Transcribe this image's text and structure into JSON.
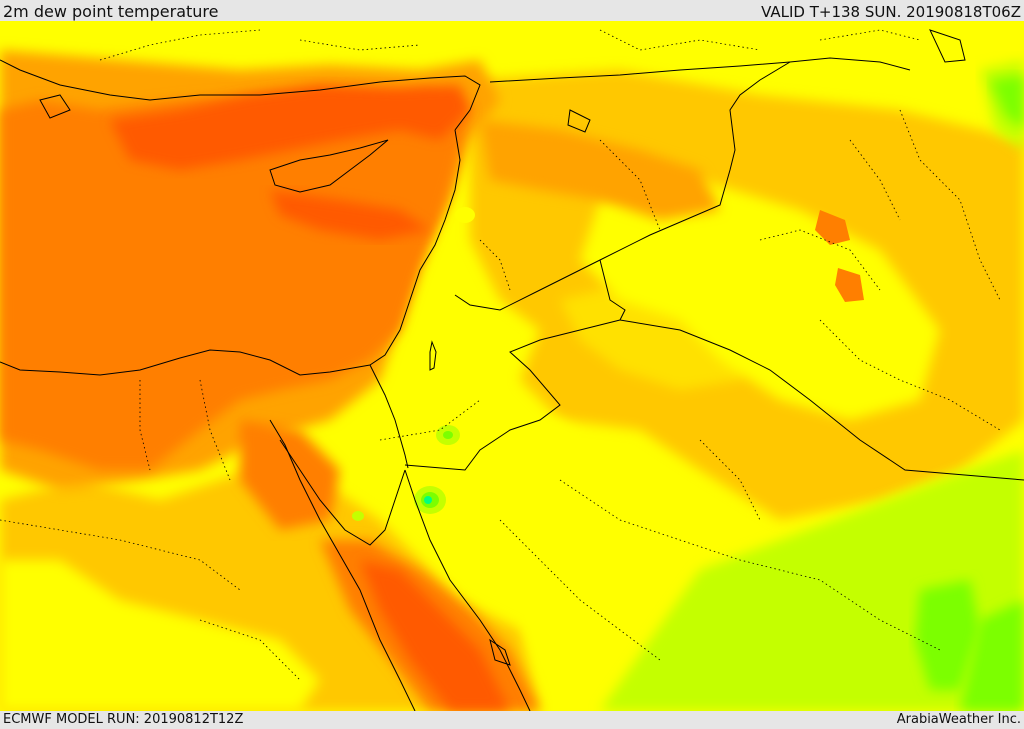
{
  "header": {
    "title": "2m dew point temperature",
    "valid": "VALID T+138 SUN. 20190818T06Z"
  },
  "footer": {
    "model_run": "ECMWF MODEL RUN: 20190812T12Z",
    "credit": "ArabiaWeather Inc."
  },
  "palette": {
    "green_light": "#7cff00",
    "green_yellow": "#c4ff00",
    "yellow": "#ffff00",
    "yellow_gold": "#ffe100",
    "gold": "#ffc800",
    "orange_light": "#ffa300",
    "orange": "#ff7f00",
    "orange_red": "#ff5a00",
    "cyan_green": "#00ff7f",
    "borders": "#000000"
  }
}
